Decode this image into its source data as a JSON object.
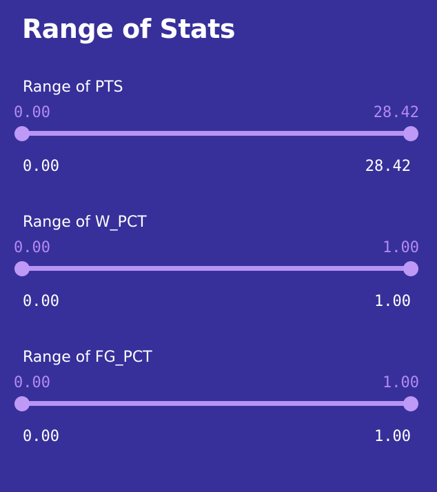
{
  "page": {
    "title": "Range of Stats"
  },
  "colors": {
    "background": "#37309a",
    "accent": "#b794f4",
    "thumb_value_text": "#b38af2",
    "text": "#ffffff"
  },
  "sliders": [
    {
      "label": "Range of PTS",
      "min_label": "0.00",
      "max_label": "28.42",
      "selected_low": "0.00",
      "selected_high": "28.42",
      "range_min": 0.0,
      "range_max": 28.42,
      "value_low": 0.0,
      "value_high": 28.42
    },
    {
      "label": "Range of W_PCT",
      "min_label": "0.00",
      "max_label": "1.00",
      "selected_low": "0.00",
      "selected_high": "1.00",
      "range_min": 0.0,
      "range_max": 1.0,
      "value_low": 0.0,
      "value_high": 1.0
    },
    {
      "label": "Range of FG_PCT",
      "min_label": "0.00",
      "max_label": "1.00",
      "selected_low": "0.00",
      "selected_high": "1.00",
      "range_min": 0.0,
      "range_max": 1.0,
      "value_low": 0.0,
      "value_high": 1.0
    }
  ]
}
